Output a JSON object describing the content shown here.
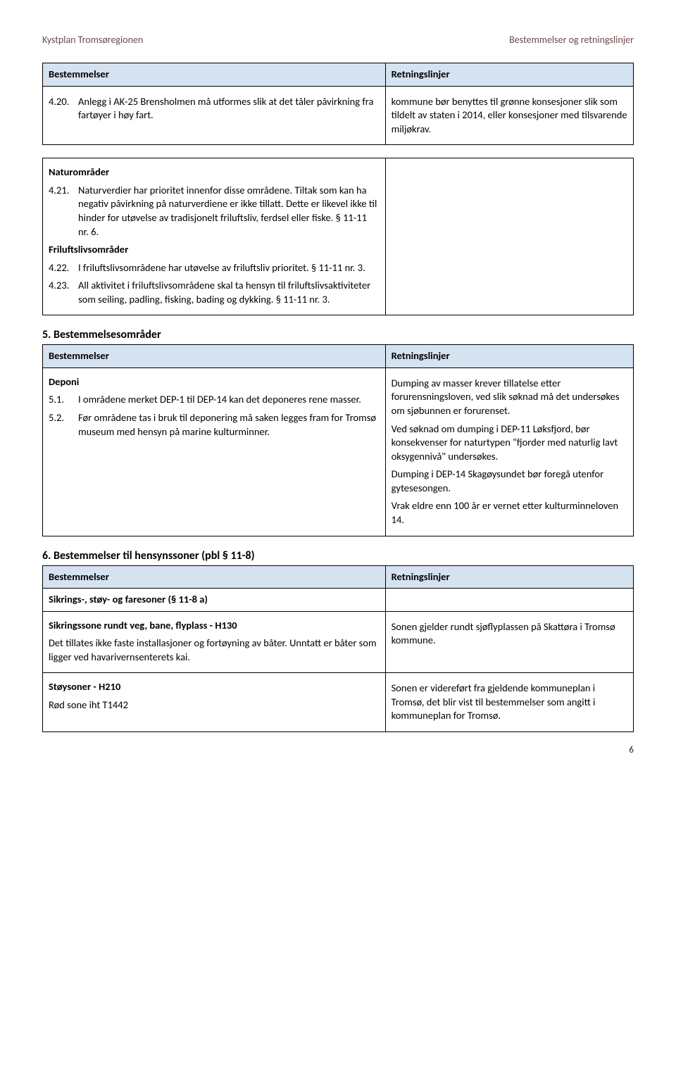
{
  "header": {
    "left": "Kystplan Tromsøregionen",
    "right": "Bestemmelser og retningslinjer"
  },
  "colors": {
    "header_bg": "#d5e2f0",
    "header_text": "#6b4a4a",
    "border": "#000000",
    "page_bg": "#ffffff"
  },
  "table1": {
    "col_left": "Bestemmelser",
    "col_right": "Retningslinjer",
    "left_item_num": "4.20.",
    "left_item_text": "Anlegg i AK-25 Brensholmen må utformes slik at det tåler påvirkning fra fartøyer i høy fart.",
    "right_text": "kommune bør benyttes til grønne konsesjoner slik som tildelt av staten i 2014, eller konsesjoner med tilsvarende miljøkrav."
  },
  "table2": {
    "natur_title": "Naturområder",
    "natur_num": "4.21.",
    "natur_text": "Naturverdier har prioritet innenfor disse områdene. Tiltak som kan ha negativ påvirkning på naturverdiene er ikke tillatt. Dette er likevel ikke til hinder for utøvelse av tradisjonelt friluftsliv, ferdsel eller fiske. § 11-11 nr. 6.",
    "fri_title": "Friluftslivsområder",
    "fri_items": [
      {
        "num": "4.22.",
        "text": "I friluftslivsområdene har utøvelse av friluftsliv prioritet. § 11-11 nr. 3."
      },
      {
        "num": "4.23.",
        "text": "All aktivitet i friluftslivsområdene skal ta hensyn til friluftslivsaktiviteter som seiling, padling, fisking, bading og dykking. § 11-11 nr. 3."
      }
    ]
  },
  "section5_title": "5.   Bestemmelsesområder",
  "table3": {
    "col_left": "Bestemmelser",
    "col_right": "Retningslinjer",
    "deponi_title": "Deponi",
    "deponi_items": [
      {
        "num": "5.1.",
        "text": "I områdene merket DEP-1 til DEP-14 kan det deponeres rene masser."
      },
      {
        "num": "5.2.",
        "text": "Før områdene tas i bruk til deponering må saken legges fram for Tromsø museum med hensyn på marine kulturminner."
      }
    ],
    "right_paras": [
      "Dumping av masser krever tillatelse etter forurensningsloven, ved slik søknad må det undersøkes om sjøbunnen er forurenset.",
      "Ved søknad om dumping i DEP-11 Løksfjord, bør konsekvenser for naturtypen \"fjorder med naturlig lavt oksygennivå\" undersøkes.",
      "Dumping i DEP-14 Skagøysundet bør foregå utenfor gytesesongen.",
      "Vrak eldre enn 100 år er vernet etter kulturminneloven 14."
    ]
  },
  "section6_title": "6.   Bestemmelser til hensynssoner (pbl § 11-8)",
  "table4": {
    "col_left": "Bestemmelser",
    "col_right": "Retningslinjer",
    "sikring_row_title": "Sikrings-, støy- og faresoner (§ 11-8 a)",
    "sikringssone_title": "Sikringssone rundt veg, bane, flyplass - H130",
    "sikringssone_text": "Det tillates ikke faste installasjoner og fortøyning av båter. Unntatt er båter som ligger ved havarivernsenterets kai.",
    "sikringssone_right": "Sonen gjelder rundt sjøflyplassen på Skattøra i Tromsø kommune.",
    "stoy_title": "Støysoner - H210",
    "stoy_sub": "Rød sone iht T1442",
    "stoy_right": "Sonen er videreført fra gjeldende kommuneplan i Tromsø, det blir vist til bestemmelser som angitt i kommuneplan for Tromsø."
  },
  "page_number": "6"
}
